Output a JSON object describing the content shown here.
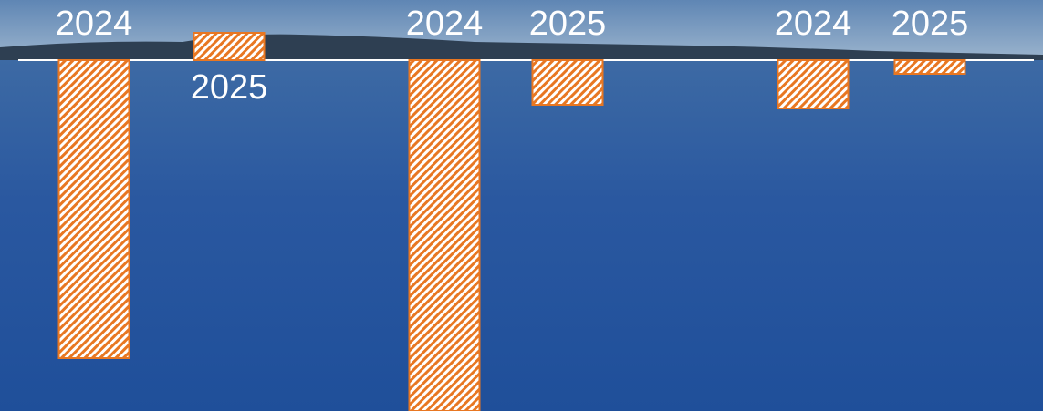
{
  "chart_data": {
    "type": "bar",
    "categories": [
      "2024",
      "2025",
      "2024",
      "2025",
      "2024",
      "2025"
    ],
    "values": [
      -327,
      30,
      -385,
      -49,
      -53,
      -15
    ],
    "color": "#e87722",
    "ylim": [
      -385,
      66
    ]
  }
}
